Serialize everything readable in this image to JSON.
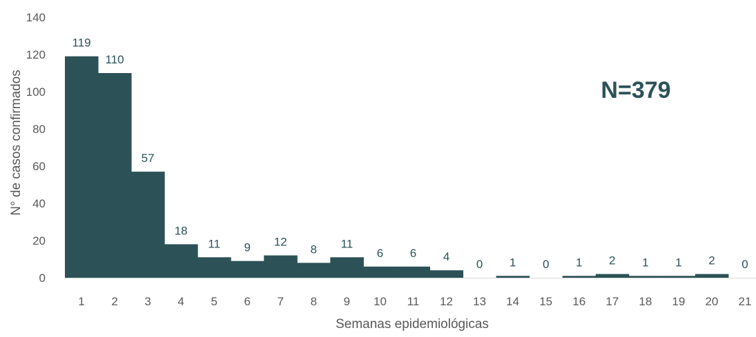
{
  "chart_data": {
    "type": "bar",
    "title": "",
    "xlabel": "Semanas epidemiológicas",
    "ylabel": "N° de casos confirmados",
    "categories": [
      "1",
      "2",
      "3",
      "4",
      "5",
      "6",
      "7",
      "8",
      "9",
      "10",
      "11",
      "12",
      "13",
      "14",
      "15",
      "16",
      "17",
      "18",
      "19",
      "20",
      "21"
    ],
    "values": [
      119,
      110,
      57,
      18,
      11,
      9,
      12,
      8,
      11,
      6,
      6,
      4,
      0,
      1,
      0,
      1,
      2,
      1,
      1,
      2,
      0
    ],
    "ylim": [
      0,
      140
    ],
    "yticks": [
      "0",
      "20",
      "40",
      "60",
      "80",
      "100",
      "120",
      "140"
    ],
    "data_labels": [
      "119",
      "110",
      "57",
      "18",
      "11",
      "9",
      "12",
      "8",
      "11",
      "6",
      "6",
      "4",
      "0",
      "1",
      "0",
      "1",
      "2",
      "1",
      "1",
      "2",
      "0"
    ],
    "annotation": "N=379",
    "bar_color": "#2c5257",
    "grid": false,
    "legend": "none"
  }
}
